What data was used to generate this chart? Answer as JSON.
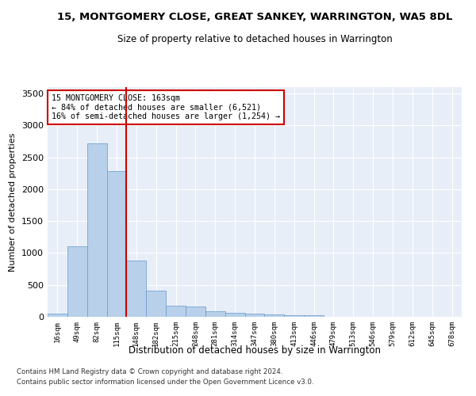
{
  "title": "15, MONTGOMERY CLOSE, GREAT SANKEY, WARRINGTON, WA5 8DL",
  "subtitle": "Size of property relative to detached houses in Warrington",
  "xlabel": "Distribution of detached houses by size in Warrington",
  "ylabel": "Number of detached properties",
  "categories": [
    "16sqm",
    "49sqm",
    "82sqm",
    "115sqm",
    "148sqm",
    "182sqm",
    "215sqm",
    "248sqm",
    "281sqm",
    "314sqm",
    "347sqm",
    "380sqm",
    "413sqm",
    "446sqm",
    "479sqm",
    "513sqm",
    "546sqm",
    "579sqm",
    "612sqm",
    "645sqm",
    "678sqm"
  ],
  "values": [
    55,
    1100,
    2720,
    2280,
    880,
    410,
    175,
    165,
    90,
    65,
    50,
    35,
    25,
    30,
    5,
    5,
    5,
    0,
    0,
    0,
    0
  ],
  "bar_color": "#b8d0ea",
  "bar_edge_color": "#6699cc",
  "vline_color": "#cc0000",
  "vline_x_index": 4,
  "annotation_text": "15 MONTGOMERY CLOSE: 163sqm\n← 84% of detached houses are smaller (6,521)\n16% of semi-detached houses are larger (1,254) →",
  "annotation_box_color": "#cc0000",
  "ylim": [
    0,
    3600
  ],
  "yticks": [
    0,
    500,
    1000,
    1500,
    2000,
    2500,
    3000,
    3500
  ],
  "background_color": "#e8eef8",
  "grid_color": "#ffffff",
  "footer1": "Contains HM Land Registry data © Crown copyright and database right 2024.",
  "footer2": "Contains public sector information licensed under the Open Government Licence v3.0."
}
